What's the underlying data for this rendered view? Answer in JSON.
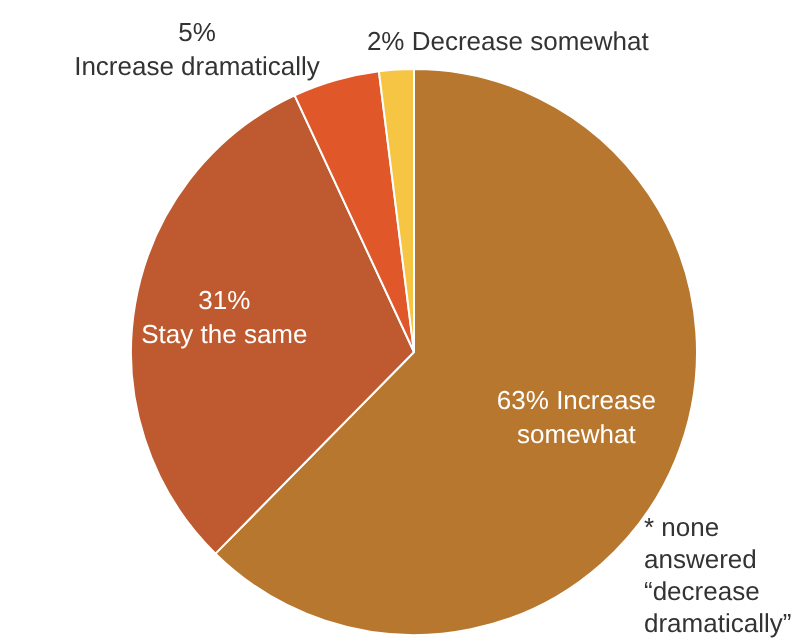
{
  "chart_data": {
    "type": "pie",
    "categories": [
      "Increase somewhat",
      "Stay the same",
      "Increase dramatically",
      "Decrease somewhat"
    ],
    "values": [
      63,
      31,
      5,
      2
    ],
    "value_labels": [
      "63%",
      "31%",
      "5%",
      "2%"
    ],
    "colors": [
      "#b8772e",
      "#bf5a30",
      "#e0582a",
      "#f7c544"
    ],
    "legend": false,
    "annotations": [
      "* none answered “decrease dramatically”"
    ]
  }
}
